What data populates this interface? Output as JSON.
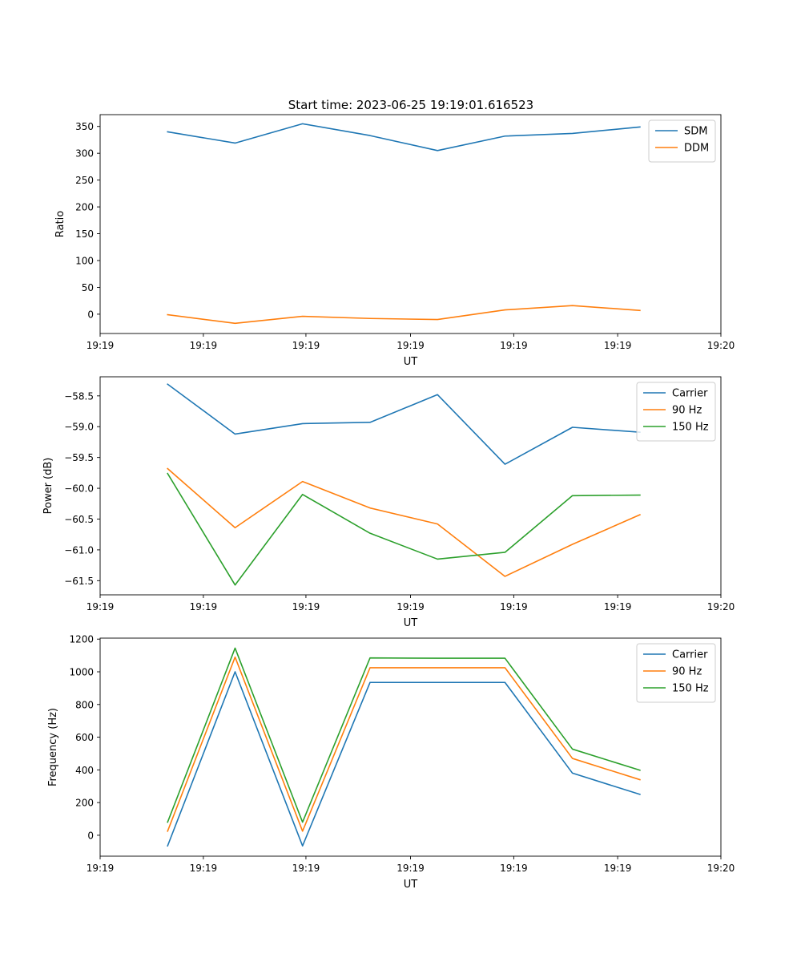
{
  "figure": {
    "title": "Start time: 2023-06-25 19:19:01.616523"
  },
  "colors": {
    "blue": "#1f77b4",
    "orange": "#ff7f0e",
    "green": "#2ca02c"
  },
  "chart_data": [
    {
      "type": "line",
      "title": "Start time: 2023-06-25 19:19:01.616523",
      "xlabel": "UT",
      "ylabel": "Ratio",
      "x": [
        1,
        2,
        3,
        4,
        5,
        6,
        7,
        8
      ],
      "xlim": [
        0,
        9.2
      ],
      "xticks": [
        0,
        1.53,
        3.05,
        4.6,
        6.13,
        7.67,
        9.2
      ],
      "xtick_labels": [
        "19:19",
        "19:19",
        "19:19",
        "19:19",
        "19:19",
        "19:19",
        "19:20"
      ],
      "ylim": [
        -36,
        372
      ],
      "yticks": [
        0,
        50,
        100,
        150,
        200,
        250,
        300,
        350
      ],
      "ytick_labels": [
        "0",
        "50",
        "100",
        "150",
        "200",
        "250",
        "300",
        "350"
      ],
      "legend_position": "top-right",
      "grid": false,
      "series": [
        {
          "name": "SDM",
          "color": "#1f77b4",
          "values": [
            340,
            319,
            355,
            333,
            305,
            332,
            337,
            349
          ]
        },
        {
          "name": "DDM",
          "color": "#ff7f0e",
          "values": [
            -1,
            -17,
            -4,
            -8,
            -10,
            8,
            16,
            7
          ]
        }
      ]
    },
    {
      "type": "line",
      "title": "",
      "xlabel": "UT",
      "ylabel": "Power (dB)",
      "x": [
        1,
        2,
        3,
        4,
        5,
        6,
        7,
        8
      ],
      "xlim": [
        0,
        9.2
      ],
      "xticks": [
        0,
        1.53,
        3.05,
        4.6,
        6.13,
        7.67,
        9.2
      ],
      "xtick_labels": [
        "19:19",
        "19:19",
        "19:19",
        "19:19",
        "19:19",
        "19:19",
        "19:20"
      ],
      "ylim": [
        -61.73,
        -58.19
      ],
      "yticks": [
        -61.5,
        -61.0,
        -60.5,
        -60.0,
        -59.5,
        -59.0,
        -58.5
      ],
      "ytick_labels": [
        "−61.5",
        "−61.0",
        "−60.5",
        "−60.0",
        "−59.5",
        "−59.0",
        "−58.5"
      ],
      "legend_position": "top-right",
      "grid": false,
      "series": [
        {
          "name": "Carrier",
          "color": "#1f77b4",
          "values": [
            -58.31,
            -59.12,
            -58.95,
            -58.93,
            -58.48,
            -59.61,
            -59.01,
            -59.09
          ]
        },
        {
          "name": "90 Hz",
          "color": "#ff7f0e",
          "values": [
            -59.68,
            -60.64,
            -59.89,
            -60.32,
            -60.58,
            -61.43,
            -60.91,
            -60.43
          ]
        },
        {
          "name": "150 Hz",
          "color": "#2ca02c",
          "values": [
            -59.76,
            -61.57,
            -60.1,
            -60.73,
            -61.15,
            -61.04,
            -60.12,
            -60.11
          ]
        }
      ]
    },
    {
      "type": "line",
      "title": "",
      "xlabel": "UT",
      "ylabel": "Frequency (Hz)",
      "x": [
        1,
        2,
        3,
        4,
        5,
        6,
        7,
        8
      ],
      "xlim": [
        0,
        9.2
      ],
      "xticks": [
        0,
        1.53,
        3.05,
        4.6,
        6.13,
        7.67,
        9.2
      ],
      "xtick_labels": [
        "19:19",
        "19:19",
        "19:19",
        "19:19",
        "19:19",
        "19:19",
        "19:20"
      ],
      "ylim": [
        -128,
        1206
      ],
      "yticks": [
        0,
        200,
        400,
        600,
        800,
        1000,
        1200
      ],
      "ytick_labels": [
        "0",
        "200",
        "400",
        "600",
        "800",
        "1000",
        "1200"
      ],
      "legend_position": "top-right",
      "grid": false,
      "series": [
        {
          "name": "Carrier",
          "color": "#1f77b4",
          "values": [
            -65,
            1000,
            -65,
            935,
            935,
            935,
            380,
            250
          ]
        },
        {
          "name": "90 Hz",
          "color": "#ff7f0e",
          "values": [
            25,
            1090,
            25,
            1025,
            1025,
            1025,
            470,
            340
          ]
        },
        {
          "name": "150 Hz",
          "color": "#2ca02c",
          "values": [
            80,
            1145,
            80,
            1085,
            1083,
            1083,
            527,
            398
          ]
        }
      ]
    }
  ]
}
